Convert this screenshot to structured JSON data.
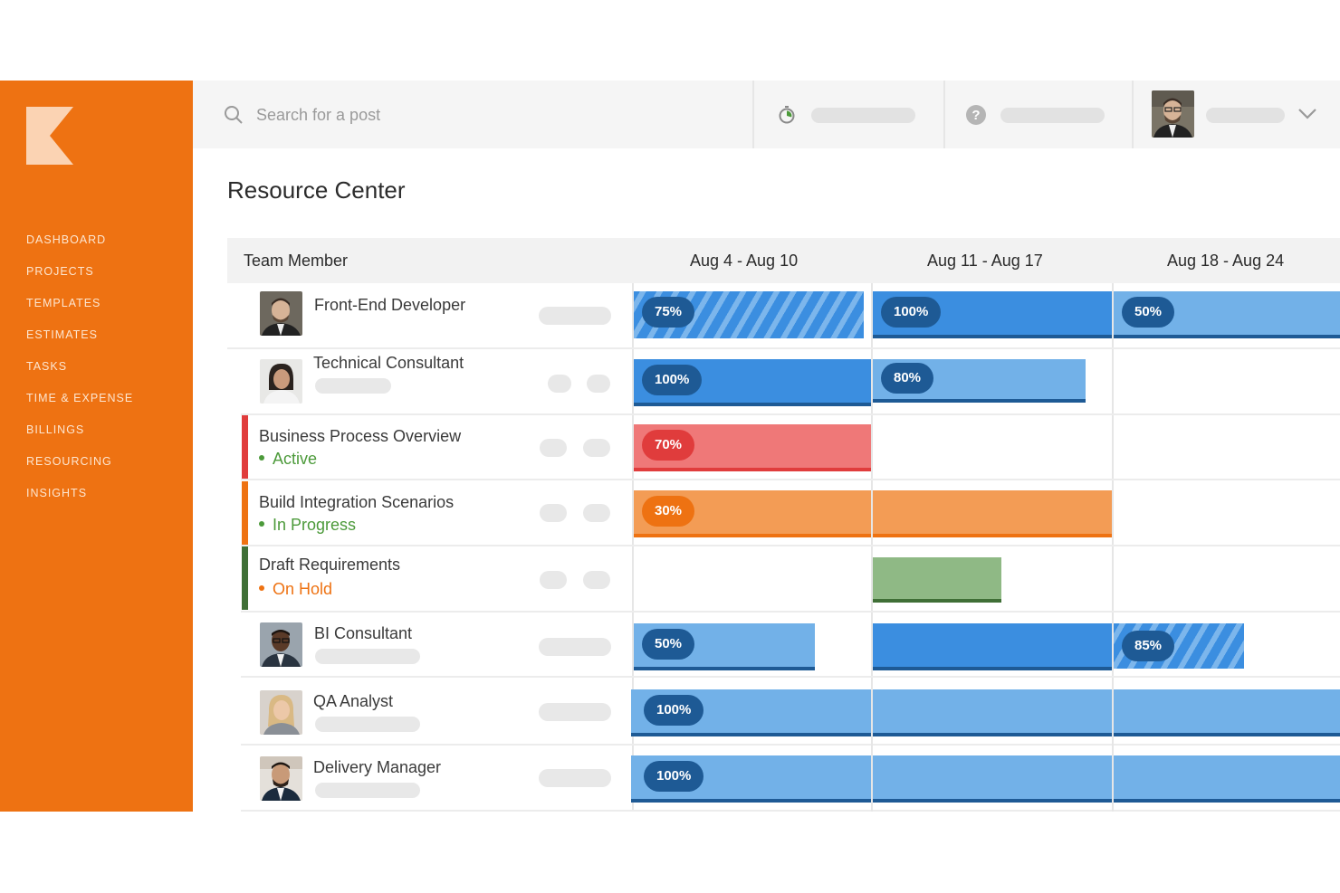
{
  "app": {
    "brand_colors": {
      "sidebar": "#ee7212",
      "logo": "#fbd3b3"
    }
  },
  "sidebar": {
    "items": [
      {
        "label": "DASHBOARD"
      },
      {
        "label": "PROJECTS"
      },
      {
        "label": "TEMPLATES"
      },
      {
        "label": "ESTIMATES"
      },
      {
        "label": "TASKS"
      },
      {
        "label": "TIME & EXPENSE"
      },
      {
        "label": "BILLINGS"
      },
      {
        "label": "RESOURCING"
      },
      {
        "label": "INSIGHTS"
      }
    ]
  },
  "topbar": {
    "search_placeholder": "Search for a post",
    "icons": [
      "search-icon",
      "stopwatch-icon",
      "help-icon",
      "chevron-down-icon"
    ]
  },
  "page": {
    "title": "Resource Center"
  },
  "table": {
    "columns": {
      "member": "Team Member",
      "weeks": [
        "Aug 4 - Aug 10",
        "Aug 11 - Aug 17",
        "Aug 18 - Aug 24"
      ]
    },
    "rows": [
      {
        "name": "Front-End Developer",
        "kind": "person",
        "allocations": [
          "75%",
          "100%",
          "50%"
        ]
      },
      {
        "name": "Technical Consultant",
        "kind": "person",
        "expanded": true,
        "allocations": [
          "100%",
          "80%",
          ""
        ]
      },
      {
        "name": "Business Process Overview",
        "kind": "project",
        "status": "Active",
        "status_color": "#4c9a3a",
        "allocations": [
          "70%",
          "",
          ""
        ]
      },
      {
        "name": "Build Integration Scenarios",
        "kind": "project",
        "status": "In Progress",
        "status_color": "#4c9a3a",
        "allocations": [
          "30%",
          "",
          ""
        ]
      },
      {
        "name": "Draft Requirements",
        "kind": "project",
        "status": "On Hold",
        "status_color": "#ee7212",
        "allocations": [
          "",
          "",
          ""
        ]
      },
      {
        "name": "BI Consultant",
        "kind": "person",
        "allocations": [
          "50%",
          "",
          "85%"
        ]
      },
      {
        "name": "QA Analyst",
        "kind": "person",
        "allocations": [
          "100%",
          "",
          ""
        ]
      },
      {
        "name": "Delivery Manager",
        "kind": "person",
        "allocations": [
          "100%",
          "",
          ""
        ]
      }
    ]
  }
}
